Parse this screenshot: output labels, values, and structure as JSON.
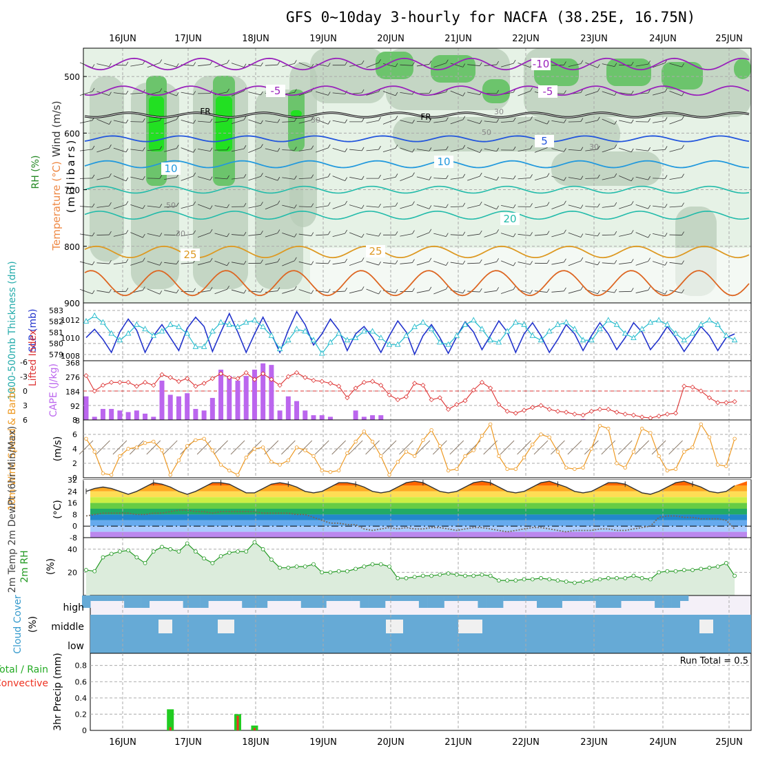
{
  "title": "GFS 0~10day 3-hourly for NACFA (38.25E, 16.75N)",
  "date_labels": [
    "16JUN",
    "17JUN",
    "18JUN",
    "19JUN",
    "20JUN",
    "21JUN",
    "22JUN",
    "23JUN",
    "24JUN",
    "25JUN"
  ],
  "upper_panel": {
    "ylabel_wind": "Wind (m/s)",
    "ylabel_temp": "Temperature (°C)",
    "ylabel_rh": "RH (%)",
    "ylabel_units": "(millibars)",
    "pressure_ticks": [
      500,
      600,
      700,
      800,
      900
    ],
    "temp_labels": [
      "-10",
      "-5",
      "-5",
      "5",
      "10",
      "10",
      "20",
      "25",
      "25"
    ],
    "freezing_label": "FR",
    "rh_labels": [
      "30",
      "30",
      "50",
      "50",
      "30",
      "30"
    ]
  },
  "slp_panel": {
    "ylabel_thickness": "1000-500mb Thickness (dm)",
    "ylabel_slp": "SLP (mb)",
    "thickness_ticks": [
      "583",
      "582",
      "581",
      "580",
      "579"
    ],
    "slp_ticks": [
      "1012",
      "1010",
      "1008"
    ]
  },
  "cape_panel": {
    "ylabel_li": "Lifted Index",
    "ylabel_cape": "CAPE (J/kg)",
    "li_ticks": [
      "-6",
      "-3",
      "0",
      "3",
      "6"
    ],
    "cape_ticks": [
      "368",
      "276",
      "184",
      "92",
      "8"
    ]
  },
  "wind_panel": {
    "ylabel": "10m Wind Speed & Barbs",
    "ylabel_units": "(m/s)",
    "ticks": [
      "8",
      "6",
      "4",
      "2",
      "0"
    ]
  },
  "temp_panel": {
    "ylabel": "2m Temp 2m DewPt (6hr Min/Max)",
    "ylabel_units": "(°C)",
    "ticks": [
      "32",
      "24",
      "16",
      "8",
      "0",
      "-8"
    ]
  },
  "rh_panel": {
    "ylabel": "2m RH",
    "ylabel_units": "(%)",
    "ticks": [
      "40",
      "20"
    ]
  },
  "cloud_panel": {
    "ylabel": "Cloud Cover",
    "ylabel_units": "(%)",
    "levels": [
      "high",
      "middle",
      "low"
    ]
  },
  "precip_panel": {
    "ylabel_total": "Total / Rain",
    "ylabel_conv": "Convective",
    "ylabel": "3hr Precip (mm)",
    "ticks": [
      "0.8",
      "0.6",
      "0.4",
      "0.2",
      "0"
    ],
    "run_total": "Run Total = 0.5"
  },
  "colors": {
    "rh_light": "#e6f2e6",
    "rh_mid": "#b8ccb8",
    "rh_high": "#6cc46c",
    "rh_max": "#22e022",
    "temp_purple": "#9922bb",
    "temp_blue": "#2255dd",
    "temp_lightblue": "#2299dd",
    "temp_teal": "#22bbaa",
    "temp_orange": "#dd9922",
    "slp": "#2233cc",
    "thickness": "#22bbcc",
    "cape": "#bb66ee",
    "lifted_index": "#dd3333",
    "wind": "#ee9922",
    "rh2m": "#229922",
    "cloud": "#66aad6",
    "precip_total": "#22cc22",
    "precip_conv": "#ee3322"
  },
  "chart_data": [
    {
      "type": "line",
      "name": "slp",
      "ylabel": "SLP (mb)",
      "ylim": [
        1008,
        1013.5
      ],
      "values": [
        1010.2,
        1011.1,
        1010.0,
        1008.6,
        1010.8,
        1012.2,
        1011.0,
        1008.6,
        1010.4,
        1011.6,
        1010.2,
        1008.8,
        1011.2,
        1012.4,
        1011.4,
        1008.7,
        1010.8,
        1012.8,
        1010.8,
        1008.6,
        1010.6,
        1012.4,
        1010.6,
        1008.6,
        1011.0,
        1013.0,
        1011.6,
        1009.4,
        1010.6,
        1012.2,
        1011.0,
        1008.8,
        1010.6,
        1011.4,
        1010.2,
        1008.6,
        1010.4,
        1012.0,
        1010.8,
        1008.4,
        1010.4,
        1011.6,
        1010.2,
        1008.5,
        1010.3,
        1011.9,
        1010.8,
        1008.9,
        1010.4,
        1012.0,
        1010.8,
        1008.6,
        1010.6,
        1011.8,
        1010.4,
        1008.6,
        1010.0,
        1011.6,
        1010.6,
        1008.8,
        1010.4,
        1011.8,
        1010.6,
        1008.9,
        1010.2,
        1011.8,
        1010.8,
        1008.9,
        1010.0,
        1011.4,
        1010.2,
        1008.7,
        1010.0,
        1011.4,
        1010.4,
        1008.8,
        1010.2,
        1010.6
      ]
    },
    {
      "type": "line",
      "name": "thickness",
      "ylabel": "1000-500mb Thickness (dm)",
      "ylim": [
        579,
        583.6
      ],
      "values": [
        582.3,
        582.8,
        582.2,
        581.2,
        580.6,
        581.2,
        582.0,
        581.6,
        581.0,
        581.4,
        582.0,
        581.8,
        581.2,
        580.0,
        580.0,
        581.4,
        582.2,
        582.0,
        581.8,
        582.2,
        582.4,
        581.8,
        581.0,
        579.8,
        580.6,
        581.6,
        581.4,
        580.6,
        579.4,
        580.4,
        581.2,
        580.6,
        580.8,
        581.4,
        581.4,
        580.8,
        580.2,
        580.2,
        581.0,
        581.8,
        582.2,
        581.6,
        580.4,
        580.2,
        581.0,
        582.0,
        582.4,
        581.6,
        580.6,
        580.4,
        581.4,
        582.2,
        582.0,
        581.0,
        580.6,
        581.4,
        582.0,
        582.2,
        581.6,
        580.6,
        580.6,
        581.6,
        582.4,
        582.0,
        581.2,
        580.8,
        581.6,
        582.2,
        582.4,
        582.0,
        581.2,
        580.6,
        581.2,
        582.0,
        582.4,
        582.0,
        581.0,
        580.6
      ]
    },
    {
      "type": "bar",
      "name": "cape",
      "ylabel": "CAPE (J/kg)",
      "ylim": [
        0,
        368
      ],
      "values": [
        150,
        20,
        70,
        70,
        60,
        50,
        60,
        40,
        20,
        250,
        160,
        150,
        170,
        70,
        60,
        140,
        320,
        280,
        250,
        280,
        320,
        360,
        350,
        60,
        150,
        120,
        60,
        30,
        30,
        20,
        0,
        0,
        60,
        20,
        30,
        30,
        0,
        0,
        0,
        0,
        0,
        0,
        0,
        0,
        0,
        0,
        0,
        0,
        0,
        0,
        0,
        0,
        0,
        0,
        0,
        0,
        0,
        0,
        0,
        5,
        0,
        0,
        0,
        0,
        0,
        0,
        0,
        0,
        0,
        0,
        0,
        0,
        0,
        0,
        0,
        0,
        0,
        0
      ]
    },
    {
      "type": "line",
      "name": "lifted_index",
      "ylabel": "Lifted Index",
      "ylim": [
        -6,
        6
      ],
      "values": [
        -3.2,
        0.0,
        -1.2,
        -1.8,
        -1.8,
        -1.8,
        -1.0,
        -1.8,
        -1.2,
        -3.4,
        -2.8,
        -2.0,
        -2.6,
        -1.0,
        -1.6,
        -2.6,
        -3.6,
        -2.8,
        -2.6,
        -3.8,
        -2.4,
        -3.6,
        -2.4,
        -1.2,
        -3.0,
        -3.8,
        -2.8,
        -2.2,
        -2.0,
        -1.6,
        -1.0,
        1.4,
        -0.6,
        -1.8,
        -2.0,
        -1.2,
        0.8,
        1.8,
        1.2,
        -1.6,
        -1.2,
        1.8,
        1.4,
        3.8,
        2.8,
        2.0,
        -0.2,
        -1.8,
        -0.6,
        2.8,
        4.2,
        4.6,
        4.0,
        3.4,
        3.0,
        3.8,
        4.2,
        4.4,
        4.8,
        5.0,
        4.2,
        3.8,
        3.8,
        4.4,
        4.8,
        5.0,
        5.4,
        5.6,
        5.2,
        4.8,
        4.6,
        -1.0,
        -0.8,
        0.0,
        1.4,
        2.4,
        2.4,
        2.2
      ]
    },
    {
      "type": "line",
      "name": "wind_speed",
      "ylabel": "10m Wind Speed (m/s)",
      "ylim": [
        0,
        8
      ],
      "values": [
        5.4,
        3.6,
        0.6,
        0.4,
        3.0,
        4.0,
        4.2,
        4.8,
        5.0,
        3.8,
        0.4,
        2.4,
        4.4,
        5.2,
        5.4,
        3.8,
        1.8,
        1.0,
        0.4,
        2.8,
        4.0,
        4.2,
        2.2,
        1.8,
        2.4,
        4.2,
        3.8,
        3.0,
        1.0,
        0.8,
        1.0,
        3.4,
        5.0,
        6.4,
        5.0,
        3.0,
        0.4,
        2.2,
        3.6,
        3.0,
        5.2,
        6.6,
        4.4,
        1.0,
        1.2,
        3.0,
        3.8,
        5.8,
        7.4,
        3.0,
        1.2,
        1.2,
        2.8,
        4.6,
        6.0,
        5.6,
        3.6,
        1.4,
        1.2,
        1.4,
        4.0,
        7.2,
        6.8,
        2.0,
        1.4,
        3.6,
        6.8,
        6.2,
        3.0,
        1.0,
        1.2,
        3.6,
        4.2,
        7.4,
        5.6,
        1.8,
        1.6,
        5.4
      ]
    },
    {
      "type": "area",
      "name": "temp_2m",
      "ylabel": "2m Temp (°C)",
      "ylim": [
        -8,
        32
      ],
      "values": [
        24,
        26,
        27,
        26,
        24,
        22,
        24,
        27,
        30,
        29,
        27,
        24,
        22,
        24,
        27,
        30,
        30,
        29,
        26,
        23,
        23,
        26,
        29,
        30,
        29,
        27,
        24,
        23,
        24,
        27,
        30,
        30,
        29,
        27,
        24,
        23,
        24,
        27,
        30,
        31,
        30,
        27,
        24,
        23,
        24,
        27,
        30,
        31,
        30,
        27,
        24,
        23,
        24,
        27,
        30,
        31,
        29,
        27,
        24,
        23,
        24,
        27,
        30,
        30,
        29,
        26,
        23,
        22,
        24,
        27,
        30,
        31,
        29,
        27,
        24,
        23,
        24,
        28
      ]
    },
    {
      "type": "line",
      "name": "dewpoint_2m",
      "ylabel": "2m DewPt (°C)",
      "ylim": [
        -8,
        32
      ],
      "values": [
        7,
        8,
        9,
        9,
        9,
        9,
        8,
        8,
        9,
        9,
        10,
        11,
        11,
        10,
        10,
        9,
        10,
        10,
        10,
        10,
        10,
        9,
        9,
        9,
        9,
        8,
        8,
        6,
        4,
        2,
        2,
        1,
        1,
        -2,
        -3,
        -2,
        -1,
        -2,
        -1,
        -2,
        -2,
        -1,
        -1,
        -2,
        -3,
        -2,
        -1,
        -1,
        -2,
        -3,
        -4,
        -3,
        -2,
        -1,
        -1,
        -2,
        -3,
        -4,
        -3,
        -3,
        -3,
        -2,
        -2,
        -3,
        -3,
        -2,
        -1,
        0,
        6,
        7,
        7,
        6,
        6,
        5,
        5,
        5,
        4,
        -2
      ]
    },
    {
      "type": "area",
      "name": "rh_2m",
      "ylabel": "2m RH (%)",
      "ylim": [
        0,
        50
      ],
      "values": [
        22,
        21,
        33,
        36,
        38,
        39,
        33,
        28,
        38,
        42,
        40,
        38,
        45,
        38,
        32,
        28,
        34,
        37,
        38,
        38,
        46,
        40,
        31,
        24,
        24,
        25,
        25,
        27,
        20,
        20,
        21,
        21,
        23,
        25,
        27,
        27,
        25,
        15,
        15,
        16,
        17,
        17,
        18,
        19,
        18,
        17,
        17,
        18,
        17,
        13,
        13,
        13,
        14,
        14,
        15,
        14,
        13,
        12,
        11,
        12,
        13,
        14,
        15,
        15,
        15,
        17,
        15,
        14,
        20,
        21,
        21,
        22,
        22,
        23,
        24,
        25,
        28,
        17
      ]
    },
    {
      "type": "bar",
      "name": "precip_total",
      "ylabel": "3hr Precip (mm)",
      "ylim": [
        0,
        0.95
      ],
      "values": [
        0,
        0,
        0,
        0,
        0,
        0,
        0,
        0,
        0,
        0,
        0.26,
        0,
        0,
        0,
        0,
        0,
        0,
        0,
        0.2,
        0,
        0.06,
        0,
        0,
        0,
        0,
        0,
        0,
        0,
        0,
        0,
        0,
        0,
        0,
        0,
        0,
        0,
        0,
        0,
        0,
        0,
        0,
        0,
        0,
        0,
        0,
        0,
        0,
        0,
        0,
        0,
        0,
        0,
        0,
        0,
        0,
        0,
        0,
        0,
        0,
        0,
        0,
        0,
        0,
        0,
        0,
        0,
        0,
        0,
        0,
        0,
        0,
        0,
        0,
        0,
        0,
        0,
        0,
        0
      ]
    },
    {
      "type": "bar",
      "name": "precip_convective",
      "ylabel": "3hr Precip (mm)",
      "ylim": [
        0,
        0.95
      ],
      "values": [
        0,
        0,
        0,
        0,
        0,
        0,
        0,
        0,
        0,
        0,
        0.04,
        0,
        0,
        0,
        0,
        0,
        0,
        0,
        0.18,
        0,
        0.03,
        0,
        0,
        0,
        0,
        0,
        0,
        0,
        0,
        0,
        0,
        0,
        0,
        0,
        0,
        0,
        0,
        0,
        0,
        0,
        0,
        0,
        0,
        0,
        0,
        0,
        0,
        0,
        0,
        0,
        0,
        0,
        0,
        0,
        0,
        0,
        0,
        0,
        0,
        0,
        0,
        0,
        0,
        0,
        0,
        0,
        0,
        0,
        0,
        0,
        0,
        0,
        0,
        0,
        0,
        0,
        0,
        0
      ]
    }
  ]
}
